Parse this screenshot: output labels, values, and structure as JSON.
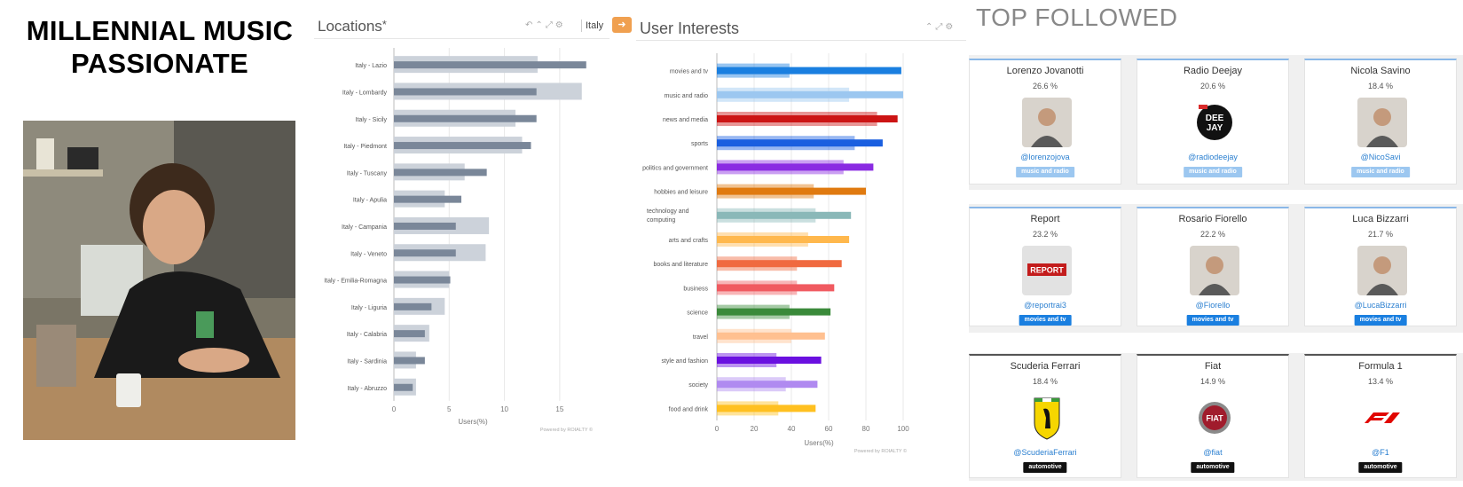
{
  "persona": {
    "title_line1": "MILLENNIAL MUSIC",
    "title_line2": "PASSIONATE"
  },
  "locations": {
    "title": "Locations",
    "title_marker": "*",
    "country": "Italy",
    "xlabel": "Users(%)",
    "powered_by": "Powered by ROIALTY ©"
  },
  "interests": {
    "title": "User Interests",
    "xlabel": "Users(%)",
    "powered_by": "Powered by ROIALTY ©"
  },
  "top_followed": {
    "title": "TOP FOLLOWED",
    "cards": [
      {
        "name": "Lorenzo Jovanotti",
        "pct": "26.6 %",
        "handle": "@lorenzojova",
        "tag": "music and radio",
        "tag_color": "#9cc7f0",
        "avatar_icon": "person-photo"
      },
      {
        "name": "Radio Deejay",
        "pct": "20.6 %",
        "handle": "@radiodeejay",
        "tag": "music and radio",
        "tag_color": "#9cc7f0",
        "avatar_icon": "deejay-logo",
        "logo_text_1": "DEE",
        "logo_text_2": "JAY"
      },
      {
        "name": "Nicola Savino",
        "pct": "18.4 %",
        "handle": "@NicoSavi",
        "tag": "music and radio",
        "tag_color": "#9cc7f0",
        "avatar_icon": "person-photo"
      },
      {
        "name": "Report",
        "pct": "23.2 %",
        "handle": "@reportrai3",
        "tag": "movies and tv",
        "tag_color": "#1a7fe0",
        "avatar_icon": "report-logo",
        "logo_text": "REPORT"
      },
      {
        "name": "Rosario Fiorello",
        "pct": "22.2 %",
        "handle": "@Fiorello",
        "tag": "movies and tv",
        "tag_color": "#1a7fe0",
        "avatar_icon": "person-photo"
      },
      {
        "name": "Luca Bizzarri",
        "pct": "21.7 %",
        "handle": "@LucaBizzarri",
        "tag": "movies and tv",
        "tag_color": "#1a7fe0",
        "avatar_icon": "person-photo"
      },
      {
        "name": "Scuderia Ferrari",
        "pct": "18.4 %",
        "handle": "@ScuderiaFerrari",
        "tag": "automotive",
        "tag_color": "#111111",
        "avatar_icon": "ferrari-shield-icon"
      },
      {
        "name": "Fiat",
        "pct": "14.9 %",
        "handle": "@fiat",
        "tag": "automotive",
        "tag_color": "#111111",
        "avatar_icon": "fiat-logo",
        "logo_text": "FIAT"
      },
      {
        "name": "Formula 1",
        "pct": "13.4 %",
        "handle": "@F1",
        "tag": "automotive",
        "tag_color": "#111111",
        "avatar_icon": "f1-logo"
      }
    ]
  },
  "chart_data": [
    {
      "type": "bar",
      "orientation": "horizontal",
      "title": "Locations",
      "xlabel": "Users(%)",
      "categories": [
        "Italy - Lazio",
        "Italy - Lombardy",
        "Italy - Sicily",
        "Italy - Piedmont",
        "Italy - Tuscany",
        "Italy - Apulia",
        "Italy - Campania",
        "Italy - Veneto",
        "Italy - Emilia-Romagna",
        "Italy - Liguria",
        "Italy - Calabria",
        "Italy - Sardinia",
        "Italy - Abruzzo"
      ],
      "series": [
        {
          "values": [
            13.0,
            17.0,
            11.0,
            11.6,
            6.4,
            4.6,
            8.6,
            8.3,
            5.0,
            4.6,
            3.2,
            2.0,
            2.0
          ],
          "color": "#ccd2da"
        },
        {
          "values": [
            17.4,
            12.9,
            12.9,
            12.4,
            8.4,
            6.1,
            5.6,
            5.6,
            5.1,
            3.4,
            2.8,
            2.8,
            1.7
          ],
          "color": "#7a8799"
        }
      ],
      "xlim": [
        0,
        17.5
      ],
      "xticks": [
        0,
        5,
        10,
        15
      ],
      "grid": true
    },
    {
      "type": "bar",
      "orientation": "horizontal",
      "title": "User Interests",
      "xlabel": "Users(%)",
      "categories": [
        "movies and tv",
        "music and radio",
        "news and media",
        "sports",
        "politics and government",
        "hobbies and leisure",
        "technology and computing",
        "arts and crafts",
        "books and literature",
        "business",
        "science",
        "travel",
        "style and fashion",
        "society",
        "food and drink"
      ],
      "series": [
        {
          "values": [
            39,
            71,
            86,
            74,
            68,
            52,
            53,
            49,
            43,
            43,
            39,
            40,
            32,
            37,
            33
          ]
        },
        {
          "values": [
            99,
            100,
            97,
            89,
            84,
            80,
            72,
            71,
            67,
            63,
            61,
            58,
            56,
            54,
            53
          ]
        }
      ],
      "colors": [
        "#1a7fe0",
        "#9cc7f0",
        "#cc1414",
        "#1a5fe0",
        "#8a2be2",
        "#e07a10",
        "#8ab8b8",
        "#ffb84d",
        "#f06a40",
        "#f05a60",
        "#3a8a3a",
        "#ffc090",
        "#6a10e0",
        "#b08af0",
        "#ffc020"
      ],
      "xlim": [
        0,
        100
      ],
      "xticks": [
        0,
        20,
        40,
        60,
        80,
        100
      ],
      "grid": true
    }
  ]
}
